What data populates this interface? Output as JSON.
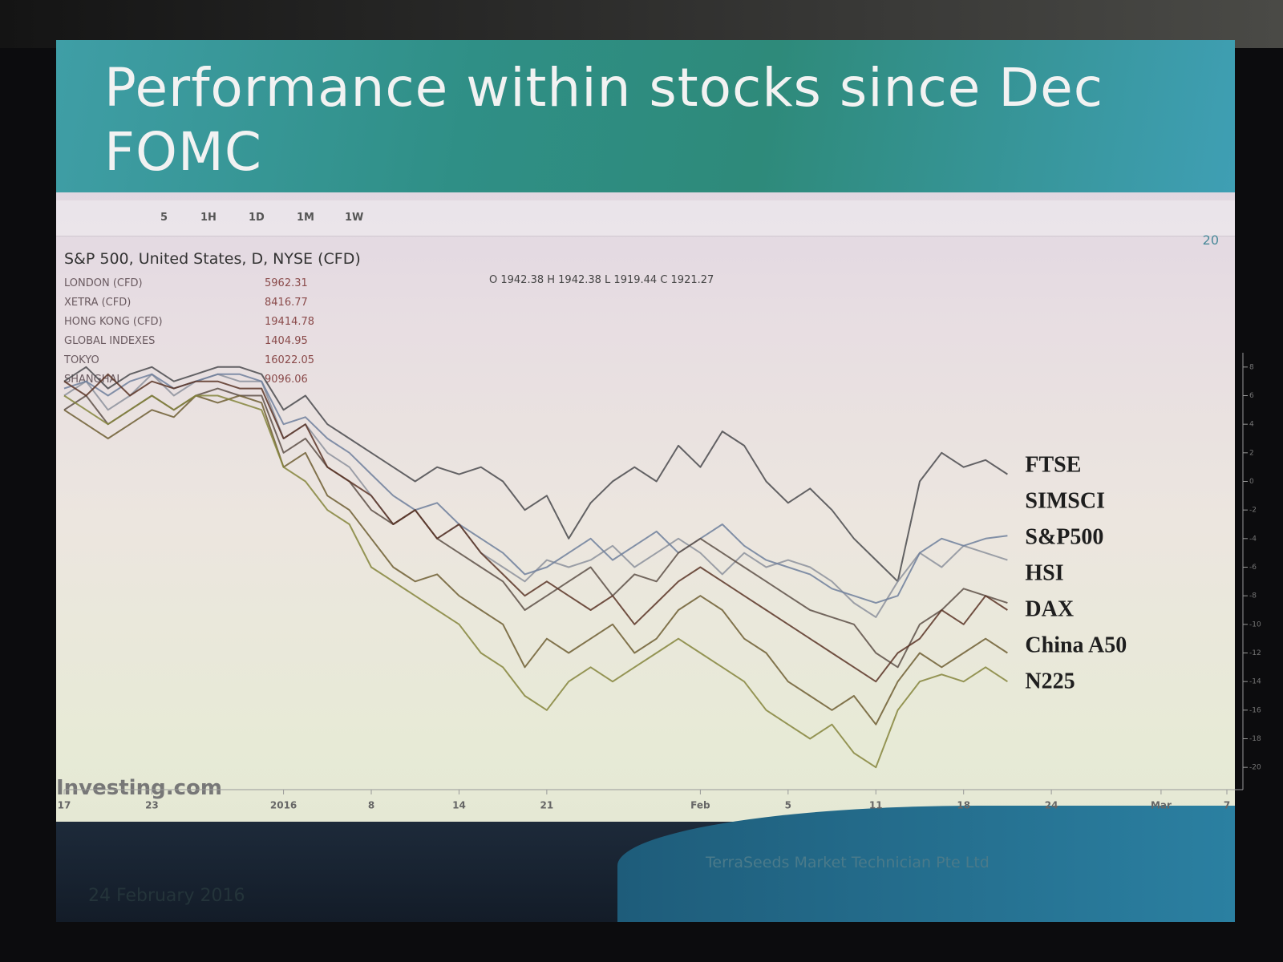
{
  "slide": {
    "number": "20",
    "toolbar": [
      "5",
      "1H",
      "1D",
      "1M",
      "1W"
    ],
    "instrument": "S&P 500, United States, D, NYSE (CFD)",
    "ohlc": "O 1942.38 H 1942.38 L 1919.44 C 1921.27",
    "legend_rows": [
      {
        "name": "LONDON (CFD)",
        "value": "5962.31"
      },
      {
        "name": "XETRA (CFD)",
        "value": "8416.77"
      },
      {
        "name": "HONG KONG (CFD)",
        "value": "19414.78"
      },
      {
        "name": "GLOBAL INDEXES",
        "value": "1404.95"
      },
      {
        "name": "TOKYO",
        "value": "16022.05"
      },
      {
        "name": "SHANGHAI",
        "value": "9096.06"
      }
    ],
    "watermark": "Investing.com",
    "company": "TerraSeeds Market Technician Pte Ltd",
    "date": "24 February 2016"
  },
  "chart_data": {
    "type": "line",
    "title": "Performance within stocks since Dec FOMC",
    "categories": [
      "17",
      null,
      null,
      null,
      "23",
      null,
      null,
      null,
      null,
      null,
      "2016",
      null,
      null,
      null,
      "8",
      null,
      null,
      null,
      "14",
      null,
      null,
      null,
      "21",
      null,
      null,
      null,
      null,
      null,
      null,
      "Feb",
      null,
      null,
      null,
      "5",
      null,
      null,
      null,
      "11",
      null,
      null,
      null,
      "18",
      null,
      null,
      null,
      "24",
      null,
      null,
      null,
      null,
      "Mar",
      null,
      null,
      "7"
    ],
    "ylim": [
      -21,
      9
    ],
    "yticks": [
      8,
      6,
      4,
      2,
      0,
      -2,
      -4,
      -6,
      -8,
      -10,
      -12,
      -14,
      -16,
      -18,
      -20
    ],
    "grid": false,
    "series": [
      {
        "name": "FTSE",
        "color": "#4a4a4e",
        "values": [
          7,
          8,
          6.5,
          7.5,
          8,
          7,
          7.5,
          8,
          8,
          7.5,
          5,
          6,
          4,
          3,
          2,
          1,
          0,
          1,
          0.5,
          1,
          0,
          -2,
          -1,
          -4,
          -1.5,
          0,
          1,
          0,
          2.5,
          1,
          3.5,
          2.5,
          0,
          -1.5,
          -0.5,
          -2,
          -4,
          -5.5,
          -7,
          0,
          2,
          1,
          1.5,
          0.5,
          null,
          null,
          null,
          null,
          null,
          null,
          null,
          null,
          null,
          null
        ]
      },
      {
        "name": "SIMSCI",
        "color": "#8c919c",
        "values": [
          6,
          7,
          5,
          6,
          7.5,
          6,
          7,
          7.5,
          7,
          7,
          3,
          4,
          2,
          1,
          -1,
          -3,
          -2,
          -4,
          -3,
          -5,
          -6,
          -7,
          -5.5,
          -6,
          -5.5,
          -4.5,
          -6,
          -5,
          -4,
          -5,
          -6.5,
          -5,
          -6,
          -5.5,
          -6,
          -7,
          -8.5,
          -9.5,
          -7,
          -5,
          -6,
          -4.5,
          -5,
          -5.5,
          null,
          null,
          null,
          null,
          null,
          null,
          null,
          null,
          null,
          null
        ]
      },
      {
        "name": "S&P500",
        "color": "#6f7f9c",
        "values": [
          6.5,
          7,
          6,
          7,
          7.5,
          6.5,
          7,
          7.5,
          7.5,
          7,
          4,
          4.5,
          3,
          2,
          0.5,
          -1,
          -2,
          -1.5,
          -3,
          -4,
          -5,
          -6.5,
          -6,
          -5,
          -4,
          -5.5,
          -4.5,
          -3.5,
          -5,
          -4,
          -3,
          -4.5,
          -5.5,
          -6,
          -6.5,
          -7.5,
          -8,
          -8.5,
          -8,
          -5,
          -4,
          -4.5,
          -4,
          -3.8,
          null,
          null,
          null,
          null,
          null,
          null,
          null,
          null,
          null,
          null
        ]
      },
      {
        "name": "HSI",
        "color": "#5e5048",
        "values": [
          5,
          6,
          4,
          5,
          6,
          5,
          6,
          6.5,
          6,
          6,
          2,
          3,
          1,
          0,
          -2,
          -3,
          -2,
          -4,
          -5,
          -6,
          -7,
          -9,
          -8,
          -7,
          -6,
          -8,
          -6.5,
          -7,
          -5,
          -4,
          -5,
          -6,
          -7,
          -8,
          -9,
          -9.5,
          -10,
          -12,
          -13,
          -10,
          -9,
          -7.5,
          -8,
          -8.5,
          null,
          null,
          null,
          null,
          null,
          null,
          null,
          null,
          null,
          null
        ]
      },
      {
        "name": "DAX",
        "color": "#5a3426",
        "values": [
          7,
          6,
          7.5,
          6,
          7,
          6.5,
          7,
          7,
          6.5,
          6.5,
          3,
          4,
          1,
          0,
          -1,
          -3,
          -2,
          -4,
          -3,
          -5,
          -6.5,
          -8,
          -7,
          -8,
          -9,
          -8,
          -10,
          -8.5,
          -7,
          -6,
          -7,
          -8,
          -9,
          -10,
          -11,
          -12,
          -13,
          -14,
          -12,
          -11,
          -9,
          -10,
          -8,
          -9,
          null,
          null,
          null,
          null,
          null,
          null,
          null,
          null,
          null,
          null
        ]
      },
      {
        "name": "China A50",
        "color": "#6e5e32",
        "values": [
          5,
          4,
          3,
          4,
          5,
          4.5,
          6,
          5.5,
          6,
          5.5,
          1,
          2,
          -1,
          -2,
          -4,
          -6,
          -7,
          -6.5,
          -8,
          -9,
          -10,
          -13,
          -11,
          -12,
          -11,
          -10,
          -12,
          -11,
          -9,
          -8,
          -9,
          -11,
          -12,
          -14,
          -15,
          -16,
          -15,
          -17,
          -14,
          -12,
          -13,
          -12,
          -11,
          -12,
          null,
          null,
          null,
          null,
          null,
          null,
          null,
          null,
          null,
          null
        ]
      },
      {
        "name": "N225",
        "color": "#85853c",
        "values": [
          6,
          5,
          4,
          5,
          6,
          5,
          6,
          6,
          5.5,
          5,
          1,
          0,
          -2,
          -3,
          -6,
          -7,
          -8,
          -9,
          -10,
          -12,
          -13,
          -15,
          -16,
          -14,
          -13,
          -14,
          -13,
          -12,
          -11,
          -12,
          -13,
          -14,
          -16,
          -17,
          -18,
          -17,
          -19,
          -20,
          -16,
          -14,
          -13.5,
          -14,
          -13,
          -14,
          null,
          null,
          null,
          null,
          null,
          null,
          null,
          null,
          null,
          null
        ]
      }
    ]
  }
}
